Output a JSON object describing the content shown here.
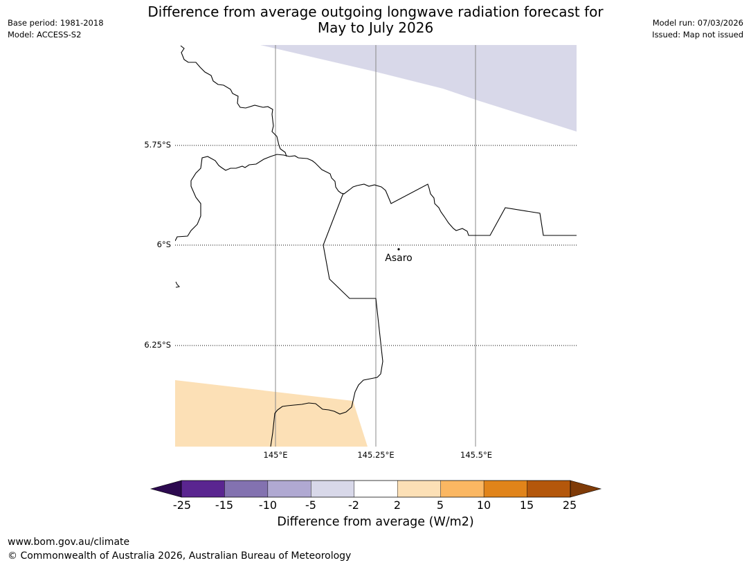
{
  "header": {
    "title_line1": "Difference from average outgoing longwave radiation forecast for",
    "title_line2": "May to July 2026",
    "base_period": "Base period: 1981-2018",
    "model": "Model: ACCESS-S2",
    "model_run": "Model run: 07/03/2026",
    "issued": "Issued: Map not issued"
  },
  "map": {
    "latitude_labels": [
      "5.75°S",
      "6°S",
      "6.25°S"
    ],
    "longitude_labels": [
      "145°E",
      "145.25°E",
      "145.5°E"
    ],
    "place": {
      "name": "Asaro"
    },
    "shading": [
      {
        "region": "top-right",
        "category": "-5 to -2",
        "color": "#d8d8e9"
      },
      {
        "region": "bottom-left",
        "category": "2 to 5",
        "color": "#fce0b6"
      }
    ]
  },
  "colorbar": {
    "label": "Difference from average (W/m2)",
    "ticks": [
      "-25",
      "-15",
      "-10",
      "-5",
      "-2",
      "2",
      "5",
      "10",
      "15",
      "25"
    ],
    "colors": [
      "#5a2590",
      "#8372b0",
      "#b0a9d2",
      "#d8d8e9",
      "#ffffff",
      "#fce0b6",
      "#fbb762",
      "#e1841a",
      "#b4570b"
    ],
    "under_color": "#2d0a50",
    "over_color": "#7f3b08"
  },
  "footer": {
    "url": "www.bom.gov.au/climate",
    "copyright": "© Commonwealth of Australia 2026, Australian Bureau of Meteorology"
  }
}
